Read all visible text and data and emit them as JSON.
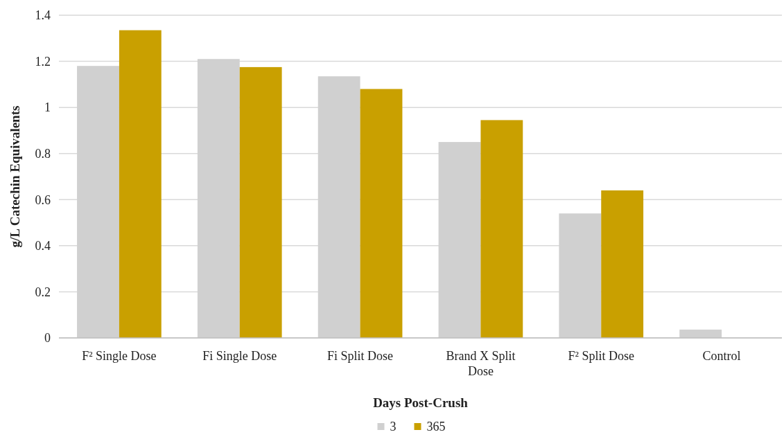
{
  "chart_data": {
    "type": "bar",
    "xlabel": "Days Post-Crush",
    "ylabel": "g/L Catechin Equivalents",
    "categories": [
      "F² Single Dose",
      "Fi Single Dose",
      "Fi Split Dose",
      "Brand X Split Dose",
      "F² Split Dose",
      "Control"
    ],
    "series": [
      {
        "name": "3",
        "color": "#d0d0d0",
        "values": [
          1.18,
          1.21,
          1.135,
          0.85,
          0.54,
          0.036
        ]
      },
      {
        "name": "365",
        "color": "#c9a000",
        "values": [
          1.335,
          1.175,
          1.08,
          0.945,
          0.64,
          null
        ]
      }
    ],
    "ylim": [
      0,
      1.4
    ],
    "yticks": [
      0,
      0.2,
      0.4,
      0.6,
      0.8,
      1,
      1.2,
      1.4
    ],
    "grid": "y",
    "legend": "bottom"
  }
}
